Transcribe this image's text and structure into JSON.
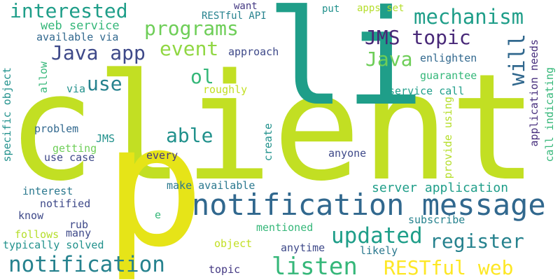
{
  "words": [
    {
      "id": "client",
      "text": "client",
      "color": "#c2df23"
    },
    {
      "id": "li",
      "text": "li",
      "color": "#1f9e89"
    },
    {
      "id": "p",
      "text": "p",
      "color": "#e6e418"
    },
    {
      "id": "notification-message",
      "text": "notification message",
      "color": "#31688e"
    },
    {
      "id": "notification",
      "text": "notification",
      "color": "#26828e"
    },
    {
      "id": "listen",
      "text": "listen",
      "color": "#35b779"
    },
    {
      "id": "restful-web",
      "text": "RESTful web",
      "color": "#fde725"
    },
    {
      "id": "interested",
      "text": "interested",
      "color": "#1f9e89"
    },
    {
      "id": "mechanism",
      "text": "mechanism",
      "color": "#1f9e89"
    },
    {
      "id": "programs",
      "text": "programs",
      "color": "#6ece58"
    },
    {
      "id": "jms-topic",
      "text": "JMS topic",
      "color": "#482878"
    },
    {
      "id": "java-app",
      "text": "Java app",
      "color": "#3e4989"
    },
    {
      "id": "event",
      "text": "event",
      "color": "#90d743"
    },
    {
      "id": "java",
      "text": "Java",
      "color": "#6ece58"
    },
    {
      "id": "will",
      "text": "will",
      "color": "#31688e"
    },
    {
      "id": "use",
      "text": "use",
      "color": "#26828e"
    },
    {
      "id": "ol",
      "text": "ol",
      "color": "#35b779"
    },
    {
      "id": "able",
      "text": "able",
      "color": "#21918c"
    },
    {
      "id": "updated",
      "text": "updated",
      "color": "#1f9e89"
    },
    {
      "id": "register",
      "text": "register",
      "color": "#26828e"
    },
    {
      "id": "server-application",
      "text": "server application",
      "color": "#1f9e89"
    },
    {
      "id": "web-service",
      "text": "web service",
      "color": "#35b779"
    },
    {
      "id": "available-via",
      "text": "available via",
      "color": "#31688e"
    },
    {
      "id": "want",
      "text": "want",
      "color": "#443983"
    },
    {
      "id": "restful-api",
      "text": "RESTful API",
      "color": "#26828e"
    },
    {
      "id": "put",
      "text": "put",
      "color": "#21918c"
    },
    {
      "id": "apps-set",
      "text": "apps set",
      "color": "#b5de2b"
    },
    {
      "id": "enlighten",
      "text": "enlighten",
      "color": "#31688e"
    },
    {
      "id": "approach",
      "text": "approach",
      "color": "#3e4989"
    },
    {
      "id": "guarantee",
      "text": "guarantee",
      "color": "#35b779"
    },
    {
      "id": "roughly",
      "text": "roughly",
      "color": "#c2df23"
    },
    {
      "id": "service-call",
      "text": "service call",
      "color": "#1f9e89"
    },
    {
      "id": "via",
      "text": "via",
      "color": "#21918c"
    },
    {
      "id": "allow",
      "text": "allow",
      "color": "#35b779"
    },
    {
      "id": "specific-object",
      "text": "specific object",
      "color": "#21918c"
    },
    {
      "id": "problem",
      "text": "problem",
      "color": "#31688e"
    },
    {
      "id": "jms",
      "text": "JMS",
      "color": "#21918c"
    },
    {
      "id": "getting",
      "text": "getting",
      "color": "#6ece58"
    },
    {
      "id": "use-case",
      "text": "use case",
      "color": "#3e4989"
    },
    {
      "id": "every",
      "text": "every",
      "color": "#443983"
    },
    {
      "id": "anyone",
      "text": "anyone",
      "color": "#3e4989"
    },
    {
      "id": "create",
      "text": "create",
      "color": "#21918c"
    },
    {
      "id": "provide-using",
      "text": "provide using",
      "color": "#b5de2b"
    },
    {
      "id": "application-needs",
      "text": "application needs",
      "color": "#472f7d"
    },
    {
      "id": "call-indicating",
      "text": "call indicating",
      "color": "#35b779"
    },
    {
      "id": "interest",
      "text": "interest",
      "color": "#2a788e"
    },
    {
      "id": "make-available",
      "text": "make available",
      "color": "#2a788e"
    },
    {
      "id": "notified",
      "text": "notified",
      "color": "#3e4989"
    },
    {
      "id": "know",
      "text": "know",
      "color": "#3e4989"
    },
    {
      "id": "e",
      "text": "e",
      "color": "#35b779"
    },
    {
      "id": "rub",
      "text": "rub",
      "color": "#3e4989"
    },
    {
      "id": "follows",
      "text": "follows",
      "color": "#b5de2b"
    },
    {
      "id": "many",
      "text": "many",
      "color": "#3e4989"
    },
    {
      "id": "typically-solved",
      "text": "typically solved",
      "color": "#21918c"
    },
    {
      "id": "mentioned",
      "text": "mentioned",
      "color": "#35b779"
    },
    {
      "id": "subscribe",
      "text": "subscribe",
      "color": "#26828e"
    },
    {
      "id": "object",
      "text": "object",
      "color": "#c2df23"
    },
    {
      "id": "anytime",
      "text": "anytime",
      "color": "#3e4989"
    },
    {
      "id": "likely",
      "text": "likely",
      "color": "#2a788e"
    },
    {
      "id": "topic",
      "text": "topic",
      "color": "#443983"
    }
  ]
}
